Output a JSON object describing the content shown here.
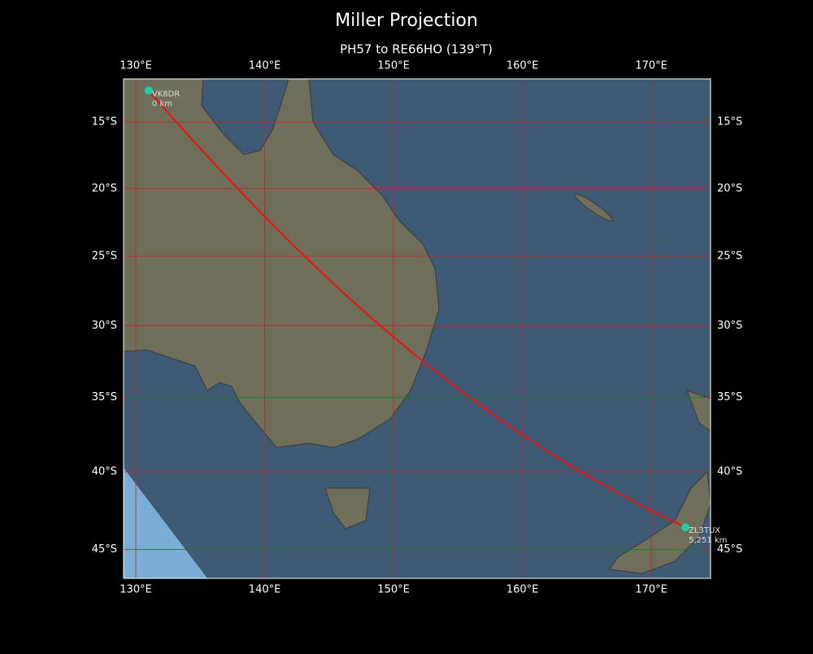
{
  "title": "Miller Projection",
  "subtitle": "PH57 to RE66HO (139°T)",
  "map": {
    "projection": "miller",
    "lonlim": [
      129.05,
      174.6
    ],
    "latlim": [
      -46.8,
      -11.7
    ],
    "grid_color": "#cc2222",
    "lonticks": [
      {
        "value": 130,
        "label": "130°E"
      },
      {
        "value": 140,
        "label": "140°E"
      },
      {
        "value": 150,
        "label": "150°E"
      },
      {
        "value": 160,
        "label": "160°E"
      },
      {
        "value": 170,
        "label": "170°E"
      }
    ],
    "latticks": [
      {
        "value": -15,
        "label": "15°S"
      },
      {
        "value": -20,
        "label": "20°S"
      },
      {
        "value": -25,
        "label": "25°S"
      },
      {
        "value": -30,
        "label": "30°S"
      },
      {
        "value": -35,
        "label": "35°S"
      },
      {
        "value": -40,
        "label": "40°S"
      },
      {
        "value": -45,
        "label": "45°S"
      }
    ],
    "path_color": "#ee1111",
    "marker_color": "#22ccaa",
    "stations": [
      {
        "name": "VK8DR",
        "distance": "0 km",
        "lon": 131.0,
        "lat": -12.6
      },
      {
        "name": "ZL3TUX",
        "distance": "5,251 km",
        "lon": 172.65,
        "lat": -43.6
      }
    ]
  }
}
